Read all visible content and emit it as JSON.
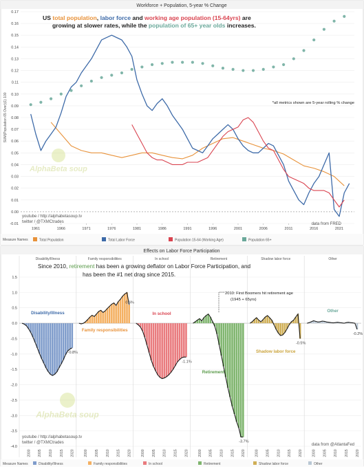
{
  "top_chart": {
    "title": "Workforce + Population, 5-year % Change",
    "headline_parts": [
      {
        "t": "US ",
        "c": "#222222"
      },
      {
        "t": "total population",
        "c": "#e8923a"
      },
      {
        "t": ", ",
        "c": "#222222"
      },
      {
        "t": "labor force",
        "c": "#3d6aa8"
      },
      {
        "t": " and ",
        "c": "#222222"
      },
      {
        "t": "working age population (15-64yrs)",
        "c": "#d9434f"
      },
      {
        "t": " are",
        "c": "#222222"
      }
    ],
    "headline_line2_parts": [
      {
        "t": "growing at slower rates, while the ",
        "c": "#222222"
      },
      {
        "t": "population of 65+ year olds",
        "c": "#6aa89a"
      },
      {
        "t": " increases.",
        "c": "#222222"
      }
    ],
    "note": "*all metrics shown are 5-year rolling % change",
    "source_link": "youtube / http://alphabetasoup.tv",
    "source_twitter": "twitter / @TXMCtrades",
    "data_from": "data from FRED",
    "watermark": "AlphaBeta soup",
    "legend_title": "Measure Names",
    "legend": [
      "Total Population",
      "Total Labor Force",
      "Population 15-64 (Working Age)",
      "Population 65+"
    ]
  },
  "bottom_chart": {
    "title": "Effects on Labor Force Participation",
    "headline_parts_1": [
      {
        "t": "Since 2010, ",
        "c": "#222222"
      },
      {
        "t": "retirement",
        "c": "#5a9a4a"
      },
      {
        "t": " has been a growing deflator on Labor Force Participation, and",
        "c": "#222222"
      }
    ],
    "headline_line2": "has been the #1 net drag since 2015.",
    "annotation_line1": "2010: First Boomers hit retirement age",
    "annotation_line2": "(1945 + 65yrs)",
    "source_link": "youtube / http://alphabetasoup.tv",
    "source_twitter": "twitter / @TXMCtrades",
    "data_from": "data from @AtlantaFed",
    "watermark": "AlphaBeta soup",
    "legend_title": "Measure Names",
    "legend": [
      "Disability/Illness",
      "Family responsibilities",
      "In school",
      "Retirement",
      "Shadow labor force",
      "Other"
    ]
  },
  "chart_data": [
    {
      "type": "line",
      "title": "Workforce + Population, 5-year % Change",
      "ylabel": "SUM(Population 65 Over)(1) 100",
      "ylim": [
        -0.01,
        0.17
      ],
      "y_ticks": [
        "-0.01",
        "0.00",
        "0.01",
        "0.02",
        "0.03",
        "0.04",
        "0.05",
        "0.06",
        "0.07",
        "0.08",
        "0.09",
        "0.10",
        "0.11",
        "0.12",
        "0.13",
        "0.14",
        "0.15",
        "0.16",
        "0.17"
      ],
      "x_ticks": [
        "1961",
        "1966",
        "1971",
        "1976",
        "1981",
        "1986",
        "1991",
        "1996",
        "2001",
        "2006",
        "2011",
        "2016",
        "2021"
      ],
      "xlim": [
        1958,
        2024
      ],
      "grid": true,
      "legend_position": "bottom",
      "series": [
        {
          "name": "Total Population",
          "color": "#e8923a",
          "x": [
            1964,
            1966,
            1968,
            1970,
            1972,
            1974,
            1976,
            1978,
            1980,
            1982,
            1984,
            1986,
            1988,
            1990,
            1992,
            1994,
            1996,
            1998,
            2000,
            2002,
            2004,
            2006,
            2008,
            2010,
            2012,
            2014,
            2016,
            2018,
            2020,
            2022
          ],
          "y": [
            0.076,
            0.066,
            0.056,
            0.052,
            0.05,
            0.05,
            0.048,
            0.046,
            0.048,
            0.05,
            0.05,
            0.048,
            0.046,
            0.045,
            0.048,
            0.054,
            0.058,
            0.062,
            0.063,
            0.06,
            0.057,
            0.054,
            0.052,
            0.049,
            0.044,
            0.039,
            0.037,
            0.034,
            0.03,
            0.022
          ]
        },
        {
          "name": "Total Labor Force",
          "color": "#3d6aa8",
          "x": [
            1960,
            1961,
            1962,
            1963,
            1964,
            1965,
            1966,
            1967,
            1968,
            1969,
            1970,
            1971,
            1972,
            1973,
            1974,
            1975,
            1976,
            1977,
            1978,
            1979,
            1980,
            1981,
            1982,
            1983,
            1984,
            1985,
            1986,
            1987,
            1988,
            1989,
            1990,
            1991,
            1992,
            1993,
            1994,
            1995,
            1996,
            1997,
            1998,
            1999,
            2000,
            2001,
            2002,
            2003,
            2004,
            2005,
            2006,
            2007,
            2008,
            2009,
            2010,
            2011,
            2012,
            2013,
            2014,
            2015,
            2016,
            2017,
            2018,
            2019,
            2020,
            2021,
            2022,
            2023
          ],
          "y": [
            0.083,
            0.066,
            0.052,
            0.06,
            0.066,
            0.072,
            0.084,
            0.098,
            0.106,
            0.11,
            0.118,
            0.124,
            0.13,
            0.138,
            0.146,
            0.148,
            0.15,
            0.148,
            0.146,
            0.14,
            0.132,
            0.112,
            0.1,
            0.09,
            0.086,
            0.092,
            0.096,
            0.09,
            0.082,
            0.076,
            0.07,
            0.062,
            0.054,
            0.052,
            0.05,
            0.056,
            0.062,
            0.066,
            0.07,
            0.074,
            0.07,
            0.062,
            0.056,
            0.052,
            0.05,
            0.05,
            0.054,
            0.058,
            0.056,
            0.048,
            0.04,
            0.026,
            0.018,
            0.01,
            0.006,
            0.016,
            0.024,
            0.03,
            0.04,
            0.05,
            0.002,
            -0.004,
            0.016,
            0.024
          ]
        },
        {
          "name": "Population 15-64 (Working Age)",
          "color": "#d9434f",
          "x": [
            1980,
            1981,
            1982,
            1983,
            1984,
            1985,
            1986,
            1987,
            1988,
            1989,
            1990,
            1991,
            1992,
            1993,
            1994,
            1995,
            1996,
            1997,
            1998,
            1999,
            2000,
            2001,
            2002,
            2003,
            2004,
            2005,
            2006,
            2007,
            2008,
            2009,
            2010,
            2011,
            2012,
            2013,
            2014,
            2015,
            2016,
            2017,
            2018,
            2019,
            2020,
            2021,
            2022
          ],
          "y": [
            0.074,
            0.066,
            0.058,
            0.05,
            0.046,
            0.044,
            0.044,
            0.042,
            0.04,
            0.04,
            0.04,
            0.042,
            0.042,
            0.042,
            0.044,
            0.046,
            0.052,
            0.058,
            0.064,
            0.068,
            0.07,
            0.072,
            0.078,
            0.08,
            0.076,
            0.068,
            0.06,
            0.054,
            0.052,
            0.044,
            0.036,
            0.03,
            0.028,
            0.026,
            0.024,
            0.02,
            0.018,
            0.018,
            0.018,
            0.016,
            0.01,
            0.004,
            0.01
          ]
        },
        {
          "name": "Population 65+",
          "color": "#6aa89a",
          "x": [
            1960,
            1962,
            1964,
            1966,
            1968,
            1970,
            1972,
            1974,
            1976,
            1978,
            1980,
            1982,
            1984,
            1986,
            1988,
            1990,
            1992,
            1994,
            1996,
            1998,
            2000,
            2002,
            2004,
            2006,
            2008,
            2010,
            2012,
            2014,
            2016,
            2018,
            2020,
            2022
          ],
          "y": [
            0.091,
            0.093,
            0.096,
            0.1,
            0.103,
            0.107,
            0.111,
            0.114,
            0.116,
            0.118,
            0.121,
            0.123,
            0.125,
            0.126,
            0.127,
            0.127,
            0.127,
            0.126,
            0.124,
            0.122,
            0.121,
            0.12,
            0.12,
            0.121,
            0.123,
            0.125,
            0.13,
            0.137,
            0.146,
            0.155,
            0.162,
            0.166
          ]
        }
      ]
    },
    {
      "type": "area",
      "title": "Effects on Labor Force Participation",
      "panels": [
        "Disability/Illness",
        "Family responsibilities",
        "In school",
        "Retirement",
        "Shadow labor force",
        "Other"
      ],
      "panel_colors": [
        "#7f9ccb",
        "#f4b062",
        "#e97b7e",
        "#7fb56e",
        "#cfae55",
        "#b9c7d4"
      ],
      "ylim": [
        -4.0,
        1.5
      ],
      "y_ticks": [
        "1.5",
        "1.0",
        "0.5",
        "0.0",
        "-0.5",
        "-1.0",
        "-1.5",
        "-2.0",
        "-2.5",
        "-3.0",
        "-3.5",
        "-4.0"
      ],
      "x_ticks": [
        "2000",
        "2005",
        "2010",
        "2015",
        "2020"
      ],
      "x": [
        1998,
        1999,
        2000,
        2001,
        2002,
        2003,
        2004,
        2005,
        2006,
        2007,
        2008,
        2009,
        2010,
        2011,
        2012,
        2013,
        2014,
        2015,
        2016,
        2017,
        2018,
        2019,
        2020,
        2021
      ],
      "series": [
        {
          "name": "Disability/Illness",
          "end_label": "-0.8%",
          "values": [
            0.0,
            -0.03,
            -0.08,
            -0.18,
            -0.3,
            -0.45,
            -0.62,
            -0.8,
            -0.98,
            -1.15,
            -1.3,
            -1.45,
            -1.57,
            -1.66,
            -1.7,
            -1.66,
            -1.58,
            -1.45,
            -1.32,
            -1.18,
            -1.02,
            -0.9,
            -0.84,
            -0.8
          ]
        },
        {
          "name": "Family responsibilities",
          "end_label": "0.6%",
          "values": [
            0.0,
            -0.02,
            0.0,
            0.05,
            0.12,
            0.2,
            0.26,
            0.22,
            0.3,
            0.38,
            0.42,
            0.35,
            0.4,
            0.48,
            0.55,
            0.62,
            0.66,
            0.58,
            0.7,
            0.78,
            0.88,
            0.95,
            1.0,
            0.6
          ]
        },
        {
          "name": "In school",
          "end_label": "-1.1%",
          "values": [
            0.0,
            -0.05,
            -0.12,
            -0.25,
            -0.45,
            -0.7,
            -0.95,
            -1.2,
            -1.4,
            -1.55,
            -1.68,
            -1.76,
            -1.8,
            -1.78,
            -1.74,
            -1.68,
            -1.6,
            -1.5,
            -1.38,
            -1.26,
            -1.18,
            -1.12,
            -1.1,
            -1.1
          ]
        },
        {
          "name": "Retirement",
          "end_label": "-3.7%",
          "values": [
            0.0,
            0.05,
            0.1,
            0.15,
            0.08,
            0.18,
            0.25,
            0.3,
            0.2,
            0.05,
            -0.1,
            -0.35,
            -0.7,
            -1.05,
            -1.4,
            -1.75,
            -2.1,
            -2.4,
            -2.7,
            -2.95,
            -3.2,
            -3.4,
            -3.7,
            -3.7
          ]
        },
        {
          "name": "Shadow labor force",
          "end_label": "-0.5%",
          "values": [
            0.0,
            0.05,
            0.12,
            0.18,
            0.1,
            0.05,
            0.12,
            0.2,
            0.25,
            0.18,
            0.1,
            -0.05,
            -0.2,
            -0.32,
            -0.4,
            -0.38,
            -0.3,
            -0.18,
            -0.05,
            0.05,
            0.1,
            0.2,
            0.3,
            -0.5
          ]
        },
        {
          "name": "Other",
          "end_label": "-0.2%",
          "values": [
            0.0,
            0.02,
            0.05,
            0.08,
            0.06,
            0.04,
            0.05,
            0.07,
            0.06,
            0.04,
            0.03,
            0.02,
            0.01,
            0.02,
            0.03,
            0.02,
            0.01,
            0.0,
            0.02,
            0.03,
            0.02,
            0.01,
            0.0,
            -0.2
          ]
        }
      ]
    }
  ]
}
